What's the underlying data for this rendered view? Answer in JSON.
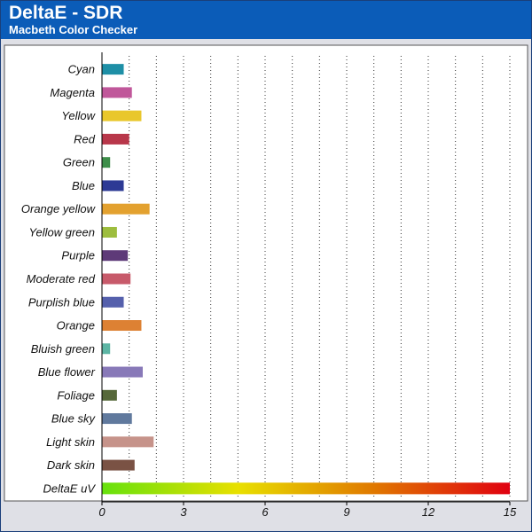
{
  "header": {
    "title": "DeltaE - SDR",
    "subtitle": "Macbeth Color Checker"
  },
  "chart_data": {
    "type": "bar",
    "orientation": "horizontal",
    "title": "DeltaE - SDR",
    "subtitle": "Macbeth Color Checker",
    "xlabel": "",
    "ylabel": "",
    "xlim": [
      0,
      15
    ],
    "xticks": [
      0,
      3,
      6,
      9,
      12,
      15
    ],
    "grid": "vertical dotted",
    "categories": [
      "Cyan",
      "Magenta",
      "Yellow",
      "Red",
      "Green",
      "Blue",
      "Orange yellow",
      "Yellow green",
      "Purple",
      "Moderate red",
      "Purplish blue",
      "Orange",
      "Bluish green",
      "Blue flower",
      "Foliage",
      "Blue sky",
      "Light skin",
      "Dark skin",
      "DeltaE uV"
    ],
    "values": [
      0.8,
      1.1,
      1.45,
      1.0,
      0.3,
      0.8,
      1.75,
      0.55,
      0.95,
      1.05,
      0.8,
      1.45,
      0.3,
      1.5,
      0.55,
      1.1,
      1.9,
      1.2,
      15
    ],
    "colors": [
      "#1e8fa6",
      "#c0579a",
      "#e9c72c",
      "#b8374a",
      "#3e8e4a",
      "#2d3a95",
      "#e3a12f",
      "#9dbd3e",
      "#5e3a78",
      "#c75a6a",
      "#5560ac",
      "#dd8133",
      "#5db5a4",
      "#8879b8",
      "#56683a",
      "#60799d",
      "#c6938a",
      "#7a5244",
      "gradient"
    ],
    "gradient_colors": [
      "#66e10d",
      "#e8e000",
      "#e07800",
      "#e00010"
    ]
  }
}
